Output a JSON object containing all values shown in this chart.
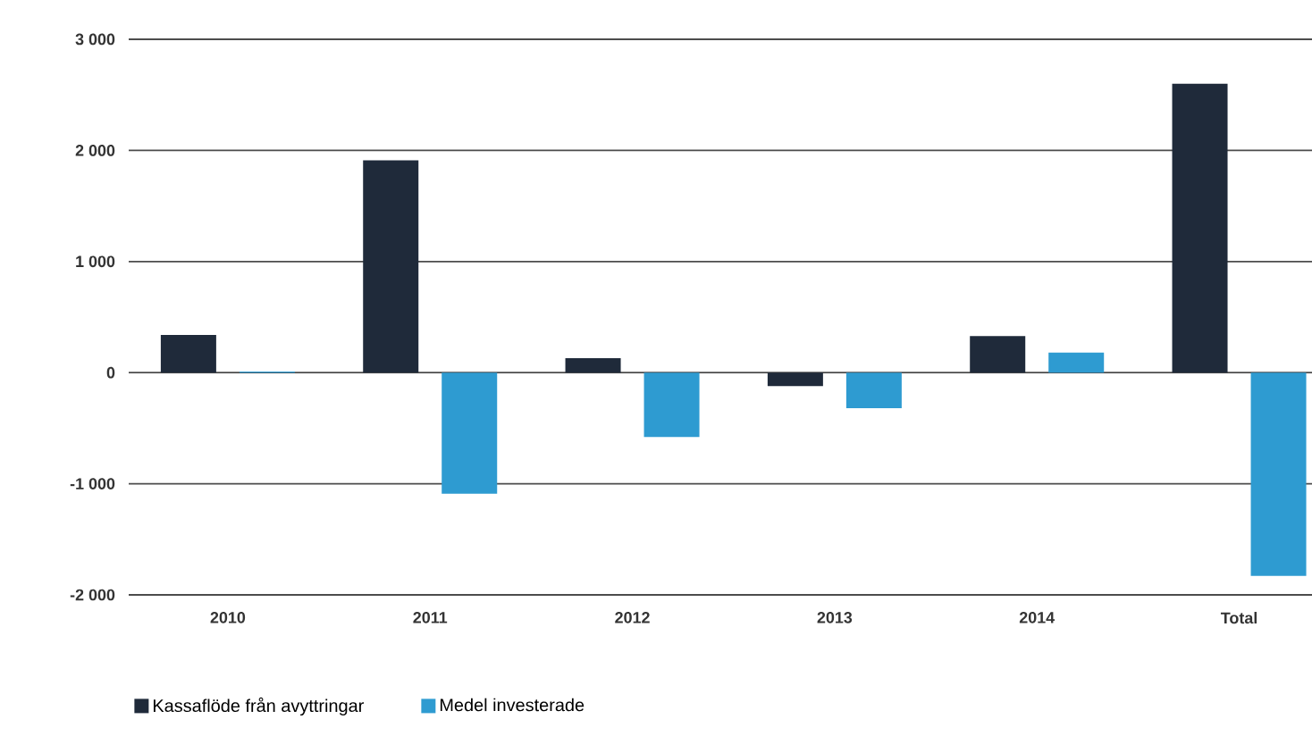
{
  "chart_data": {
    "type": "bar",
    "categories": [
      "2010",
      "2011",
      "2012",
      "2013",
      "2014",
      "Total"
    ],
    "series": [
      {
        "name": "Kassaflöde från avyttringar",
        "color": "#1f2a3a",
        "values": [
          340,
          1910,
          130,
          -120,
          330,
          2600
        ]
      },
      {
        "name": "Medel investerade",
        "color": "#2e9bd1",
        "values": [
          10,
          -1090,
          -580,
          -320,
          180,
          -1830
        ]
      }
    ],
    "ylim": [
      -2000,
      3000
    ],
    "yticks": [
      {
        "value": -2000,
        "label": "-2 000"
      },
      {
        "value": -1000,
        "label": "-1 000"
      },
      {
        "value": 0,
        "label": "0"
      },
      {
        "value": 1000,
        "label": "1 000"
      },
      {
        "value": 2000,
        "label": "2 000"
      },
      {
        "value": 3000,
        "label": "3 000"
      }
    ],
    "grid": "y",
    "legend": "bottom"
  }
}
